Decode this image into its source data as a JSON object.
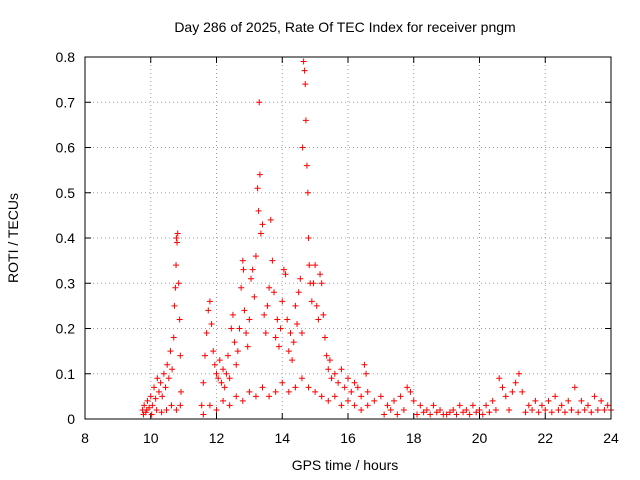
{
  "chart_data": {
    "type": "scatter",
    "title": "Day 286 of 2025, Rate Of TEC Index for receiver pngm",
    "xlabel": "GPS time / hours",
    "ylabel": "ROTI / TECUs",
    "xlim": [
      8,
      24
    ],
    "ylim": [
      0,
      0.8
    ],
    "grid": true,
    "marker": "plus",
    "color": "#ff0000",
    "x_ticks": [
      8,
      10,
      12,
      14,
      16,
      18,
      20,
      22,
      24
    ],
    "x_tick_labels": [
      "8",
      "10",
      "12",
      "14",
      "16",
      "18",
      "20",
      "22",
      "24"
    ],
    "y_ticks": [
      0,
      0.1,
      0.2,
      0.3,
      0.4,
      0.5,
      0.6,
      0.7,
      0.8
    ],
    "y_tick_labels": [
      "0",
      "0.1",
      "0.2",
      "0.3",
      "0.4",
      "0.5",
      "0.6",
      "0.7",
      "0.8"
    ],
    "series": [
      {
        "name": "ROTI",
        "points": [
          [
            9.75,
            0.02
          ],
          [
            9.8,
            0.03
          ],
          [
            9.85,
            0.015
          ],
          [
            9.9,
            0.04
          ],
          [
            9.95,
            0.025
          ],
          [
            10.0,
            0.05
          ],
          [
            10.05,
            0.03
          ],
          [
            10.1,
            0.07
          ],
          [
            10.15,
            0.045
          ],
          [
            10.2,
            0.09
          ],
          [
            10.25,
            0.06
          ],
          [
            10.3,
            0.08
          ],
          [
            10.35,
            0.05
          ],
          [
            10.4,
            0.1
          ],
          [
            10.45,
            0.07
          ],
          [
            10.5,
            0.12
          ],
          [
            10.55,
            0.09
          ],
          [
            10.6,
            0.15
          ],
          [
            10.65,
            0.11
          ],
          [
            10.7,
            0.18
          ],
          [
            10.72,
            0.25
          ],
          [
            10.75,
            0.29
          ],
          [
            10.77,
            0.34
          ],
          [
            10.8,
            0.39
          ],
          [
            10.82,
            0.41
          ],
          [
            10.78,
            0.4
          ],
          [
            10.85,
            0.3
          ],
          [
            10.88,
            0.22
          ],
          [
            10.9,
            0.14
          ],
          [
            10.92,
            0.06
          ],
          [
            9.78,
            0.01
          ],
          [
            9.88,
            0.02
          ],
          [
            10.03,
            0.01
          ],
          [
            10.18,
            0.02
          ],
          [
            10.33,
            0.015
          ],
          [
            10.48,
            0.02
          ],
          [
            10.63,
            0.03
          ],
          [
            10.78,
            0.02
          ],
          [
            10.9,
            0.03
          ],
          [
            11.55,
            0.03
          ],
          [
            11.6,
            0.08
          ],
          [
            11.65,
            0.14
          ],
          [
            11.7,
            0.19
          ],
          [
            11.75,
            0.24
          ],
          [
            11.8,
            0.26
          ],
          [
            11.85,
            0.21
          ],
          [
            11.9,
            0.15
          ],
          [
            11.95,
            0.12
          ],
          [
            12.0,
            0.1
          ],
          [
            12.05,
            0.09
          ],
          [
            12.1,
            0.13
          ],
          [
            12.15,
            0.08
          ],
          [
            12.2,
            0.11
          ],
          [
            12.25,
            0.07
          ],
          [
            12.3,
            0.1
          ],
          [
            12.35,
            0.14
          ],
          [
            12.4,
            0.09
          ],
          [
            12.45,
            0.2
          ],
          [
            12.5,
            0.23
          ],
          [
            12.55,
            0.17
          ],
          [
            12.6,
            0.12
          ],
          [
            12.65,
            0.15
          ],
          [
            12.7,
            0.2
          ],
          [
            12.75,
            0.29
          ],
          [
            12.8,
            0.35
          ],
          [
            12.82,
            0.33
          ],
          [
            12.85,
            0.24
          ],
          [
            12.9,
            0.19
          ],
          [
            12.95,
            0.16
          ],
          [
            13.0,
            0.22
          ],
          [
            13.05,
            0.31
          ],
          [
            13.1,
            0.33
          ],
          [
            13.15,
            0.27
          ],
          [
            13.2,
            0.36
          ],
          [
            13.25,
            0.51
          ],
          [
            13.28,
            0.46
          ],
          [
            13.3,
            0.7
          ],
          [
            13.32,
            0.54
          ],
          [
            13.35,
            0.41
          ],
          [
            13.4,
            0.43
          ],
          [
            13.45,
            0.23
          ],
          [
            13.5,
            0.19
          ],
          [
            13.55,
            0.25
          ],
          [
            13.6,
            0.29
          ],
          [
            13.65,
            0.44
          ],
          [
            13.7,
            0.35
          ],
          [
            13.75,
            0.28
          ],
          [
            13.8,
            0.18
          ],
          [
            13.85,
            0.22
          ],
          [
            13.9,
            0.16
          ],
          [
            13.95,
            0.2
          ],
          [
            14.0,
            0.26
          ],
          [
            14.05,
            0.33
          ],
          [
            14.1,
            0.32
          ],
          [
            14.15,
            0.22
          ],
          [
            14.2,
            0.15
          ],
          [
            14.25,
            0.19
          ],
          [
            14.3,
            0.13
          ],
          [
            14.35,
            0.17
          ],
          [
            14.4,
            0.25
          ],
          [
            14.45,
            0.21
          ],
          [
            14.5,
            0.28
          ],
          [
            14.55,
            0.31
          ],
          [
            14.6,
            0.19
          ],
          [
            14.62,
            0.6
          ],
          [
            14.65,
            0.79
          ],
          [
            14.68,
            0.77
          ],
          [
            14.7,
            0.74
          ],
          [
            14.72,
            0.66
          ],
          [
            14.75,
            0.56
          ],
          [
            14.78,
            0.5
          ],
          [
            14.8,
            0.4
          ],
          [
            14.82,
            0.34
          ],
          [
            14.85,
            0.3
          ],
          [
            14.9,
            0.26
          ],
          [
            14.95,
            0.3
          ],
          [
            15.0,
            0.34
          ],
          [
            15.05,
            0.25
          ],
          [
            15.1,
            0.22
          ],
          [
            15.15,
            0.32
          ],
          [
            15.2,
            0.3
          ],
          [
            15.25,
            0.23
          ],
          [
            15.3,
            0.18
          ],
          [
            15.35,
            0.14
          ],
          [
            15.4,
            0.11
          ],
          [
            15.45,
            0.13
          ],
          [
            15.5,
            0.09
          ],
          [
            15.6,
            0.1
          ],
          [
            15.7,
            0.08
          ],
          [
            15.8,
            0.11
          ],
          [
            15.9,
            0.07
          ],
          [
            16.0,
            0.09
          ],
          [
            16.1,
            0.06
          ],
          [
            16.2,
            0.08
          ],
          [
            16.3,
            0.07
          ],
          [
            16.4,
            0.05
          ],
          [
            16.5,
            0.12
          ],
          [
            16.55,
            0.1
          ],
          [
            16.6,
            0.06
          ],
          [
            11.6,
            0.01
          ],
          [
            11.8,
            0.03
          ],
          [
            12.0,
            0.02
          ],
          [
            12.2,
            0.04
          ],
          [
            12.4,
            0.03
          ],
          [
            12.6,
            0.05
          ],
          [
            12.8,
            0.04
          ],
          [
            13.0,
            0.06
          ],
          [
            13.2,
            0.05
          ],
          [
            13.4,
            0.07
          ],
          [
            13.6,
            0.05
          ],
          [
            13.8,
            0.06
          ],
          [
            14.0,
            0.08
          ],
          [
            14.2,
            0.06
          ],
          [
            14.4,
            0.07
          ],
          [
            14.6,
            0.09
          ],
          [
            14.8,
            0.07
          ],
          [
            15.0,
            0.06
          ],
          [
            15.2,
            0.05
          ],
          [
            15.4,
            0.04
          ],
          [
            15.6,
            0.05
          ],
          [
            15.8,
            0.03
          ],
          [
            16.0,
            0.04
          ],
          [
            16.2,
            0.03
          ],
          [
            16.4,
            0.02
          ],
          [
            16.6,
            0.03
          ],
          [
            16.8,
            0.04
          ],
          [
            17.0,
            0.05
          ],
          [
            17.2,
            0.03
          ],
          [
            17.4,
            0.04
          ],
          [
            17.6,
            0.05
          ],
          [
            17.8,
            0.07
          ],
          [
            17.9,
            0.06
          ],
          [
            18.0,
            0.04
          ],
          [
            18.2,
            0.03
          ],
          [
            18.4,
            0.02
          ],
          [
            18.6,
            0.03
          ],
          [
            18.8,
            0.02
          ],
          [
            19.0,
            0.01
          ],
          [
            19.2,
            0.02
          ],
          [
            19.4,
            0.03
          ],
          [
            19.6,
            0.02
          ],
          [
            19.8,
            0.03
          ],
          [
            20.0,
            0.02
          ],
          [
            20.2,
            0.03
          ],
          [
            20.4,
            0.04
          ],
          [
            20.6,
            0.09
          ],
          [
            20.7,
            0.07
          ],
          [
            20.8,
            0.05
          ],
          [
            21.0,
            0.06
          ],
          [
            21.1,
            0.08
          ],
          [
            21.2,
            0.1
          ],
          [
            21.3,
            0.06
          ],
          [
            21.5,
            0.03
          ],
          [
            21.7,
            0.04
          ],
          [
            21.9,
            0.03
          ],
          [
            22.1,
            0.04
          ],
          [
            22.3,
            0.05
          ],
          [
            22.5,
            0.03
          ],
          [
            22.7,
            0.04
          ],
          [
            22.9,
            0.07
          ],
          [
            23.1,
            0.04
          ],
          [
            23.3,
            0.03
          ],
          [
            23.5,
            0.05
          ],
          [
            23.7,
            0.04
          ],
          [
            23.8,
            0.02
          ],
          [
            23.9,
            0.03
          ],
          [
            24.0,
            0.02
          ],
          [
            17.1,
            0.01
          ],
          [
            17.3,
            0.02
          ],
          [
            17.5,
            0.01
          ],
          [
            17.7,
            0.02
          ],
          [
            18.1,
            0.01
          ],
          [
            18.3,
            0.015
          ],
          [
            18.5,
            0.01
          ],
          [
            18.7,
            0.015
          ],
          [
            18.9,
            0.01
          ],
          [
            19.1,
            0.015
          ],
          [
            19.3,
            0.01
          ],
          [
            19.5,
            0.015
          ],
          [
            19.7,
            0.01
          ],
          [
            19.9,
            0.015
          ],
          [
            20.1,
            0.01
          ],
          [
            20.3,
            0.015
          ],
          [
            20.5,
            0.02
          ],
          [
            20.9,
            0.02
          ],
          [
            21.4,
            0.015
          ],
          [
            21.6,
            0.02
          ],
          [
            21.8,
            0.015
          ],
          [
            22.0,
            0.02
          ],
          [
            22.2,
            0.015
          ],
          [
            22.4,
            0.02
          ],
          [
            22.6,
            0.015
          ],
          [
            22.8,
            0.02
          ],
          [
            23.0,
            0.015
          ],
          [
            23.2,
            0.02
          ],
          [
            23.4,
            0.015
          ],
          [
            23.6,
            0.02
          ]
        ]
      }
    ]
  }
}
